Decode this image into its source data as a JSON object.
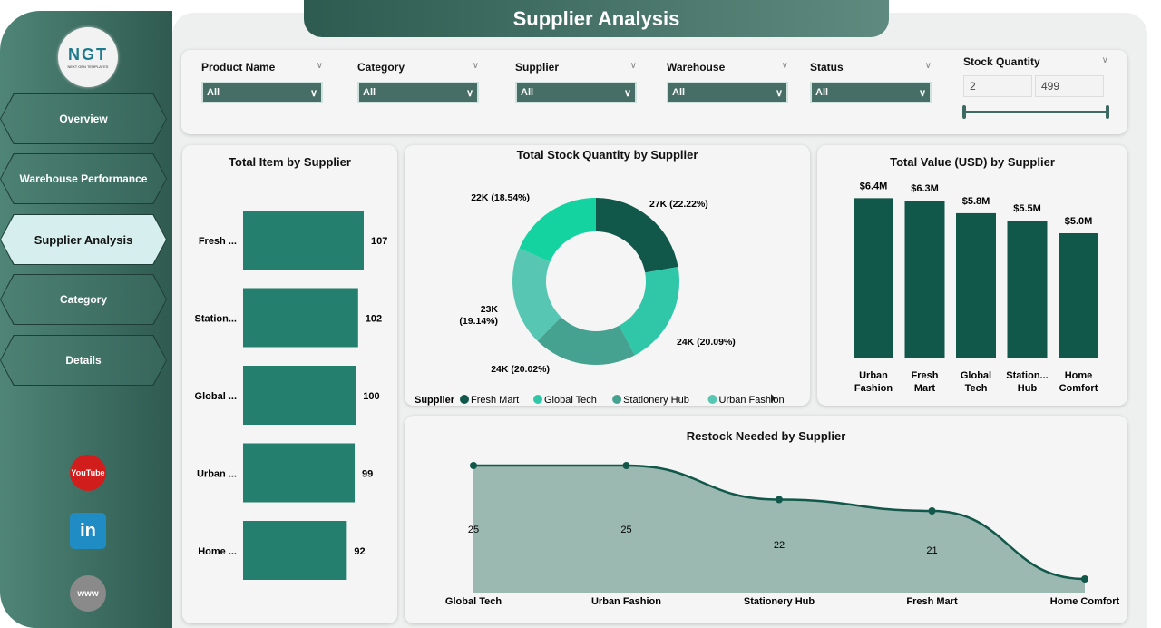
{
  "title": "Supplier Analysis",
  "logo": {
    "text": "NGT",
    "sub": "NEXT GEN TEMPLATES"
  },
  "nav": [
    "Overview",
    "Warehouse Performance",
    "Supplier Analysis",
    "Category",
    "Details"
  ],
  "social": {
    "youtube": "YouTube",
    "linkedin": "in",
    "web": "www"
  },
  "filters": [
    {
      "label": "Product Name",
      "value": "All"
    },
    {
      "label": "Category",
      "value": "All"
    },
    {
      "label": "Supplier",
      "value": "All"
    },
    {
      "label": "Warehouse",
      "value": "All"
    },
    {
      "label": "Status",
      "value": "All"
    }
  ],
  "stock_filter": {
    "label": "Stock Quantity",
    "min": "2",
    "max": "499"
  },
  "colors": {
    "dark": "#12584a",
    "bar": "#247f6e",
    "area": "#9bb8b1"
  },
  "chart_data": [
    {
      "type": "bar",
      "orientation": "horizontal",
      "title": "Total Item by Supplier",
      "categories": [
        "Fresh ...",
        "Station...",
        "Global ...",
        "Urban ...",
        "Home ..."
      ],
      "values": [
        107,
        102,
        100,
        99,
        92
      ]
    },
    {
      "type": "pie",
      "title": "Total Stock Quantity by Supplier",
      "legend_title": "Supplier",
      "slices": [
        {
          "name": "Fresh Mart",
          "value": 27,
          "label": "27K (22.22%)",
          "color": "#12584a"
        },
        {
          "name": "Global Tech",
          "value": 24,
          "label": "24K (20.09%)",
          "color": "#2fc7a8"
        },
        {
          "name": "Stationery Hub",
          "value": 24,
          "label": "24K (20.02%)",
          "color": "#45a190"
        },
        {
          "name": "Urban Fashion",
          "value": 23,
          "label": "23K (19.14%)",
          "color": "#57c6b3"
        },
        {
          "name": "Home Comfort",
          "value": 22,
          "label": "22K (18.54%)",
          "color": "#14d3a1"
        }
      ],
      "legend": [
        "Fresh Mart",
        "Global Tech",
        "Stationery Hub",
        "Urban Fashion"
      ]
    },
    {
      "type": "bar",
      "title": "Total Value (USD) by Supplier",
      "categories": [
        [
          "Urban",
          "Fashion"
        ],
        [
          "Fresh",
          "Mart"
        ],
        [
          "Global",
          "Tech"
        ],
        [
          "Station...",
          "Hub"
        ],
        [
          "Home",
          "Comfort"
        ]
      ],
      "values": [
        6.4,
        6.3,
        5.8,
        5.5,
        5.0
      ],
      "labels": [
        "$6.4M",
        "$6.3M",
        "$5.8M",
        "$5.5M",
        "$5.0M"
      ]
    },
    {
      "type": "area",
      "title": "Restock Needed by Supplier",
      "categories": [
        "Global Tech",
        "Urban Fashion",
        "Stationery Hub",
        "Fresh Mart",
        "Home Comfort"
      ],
      "values": [
        25,
        25,
        22,
        21,
        15
      ],
      "labels": [
        "25",
        "25",
        "22",
        "21",
        ""
      ]
    }
  ]
}
